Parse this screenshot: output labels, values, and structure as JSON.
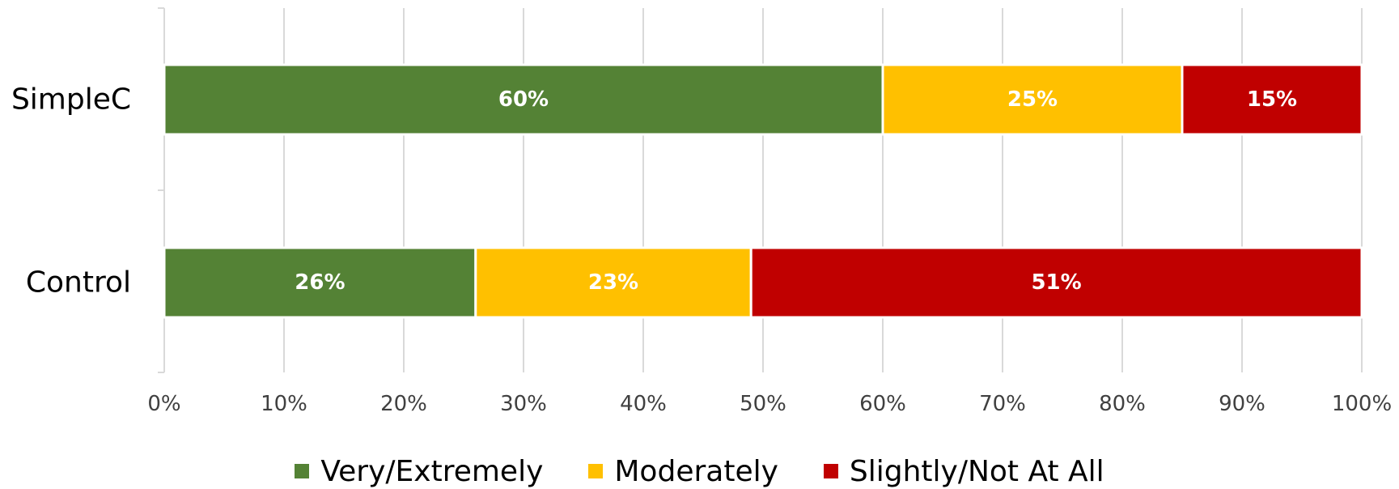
{
  "chart_data": {
    "type": "bar",
    "orientation": "horizontal",
    "stacked": true,
    "categories": [
      "SimpleC",
      "Control"
    ],
    "series": [
      {
        "name": "Very/Extremely",
        "color": "#548235",
        "values": [
          60,
          26
        ],
        "labels": [
          "60%",
          "26%"
        ]
      },
      {
        "name": "Moderately",
        "color": "#FFC000",
        "values": [
          25,
          23
        ],
        "labels": [
          "25%",
          "23%"
        ]
      },
      {
        "name": "Slightly/Not At All",
        "color": "#C00000",
        "values": [
          15,
          51
        ],
        "labels": [
          "15%",
          "51%"
        ]
      }
    ],
    "xlim": [
      0,
      100
    ],
    "x_ticks": [
      0,
      10,
      20,
      30,
      40,
      50,
      60,
      70,
      80,
      90,
      100
    ],
    "x_tick_labels": [
      "0%",
      "10%",
      "20%",
      "30%",
      "40%",
      "50%",
      "60%",
      "70%",
      "80%",
      "90%",
      "100%"
    ],
    "title": "",
    "xlabel": "",
    "ylabel": "",
    "grid": "vertical",
    "grid_color": "#D9D9D9",
    "legend_position": "bottom"
  }
}
